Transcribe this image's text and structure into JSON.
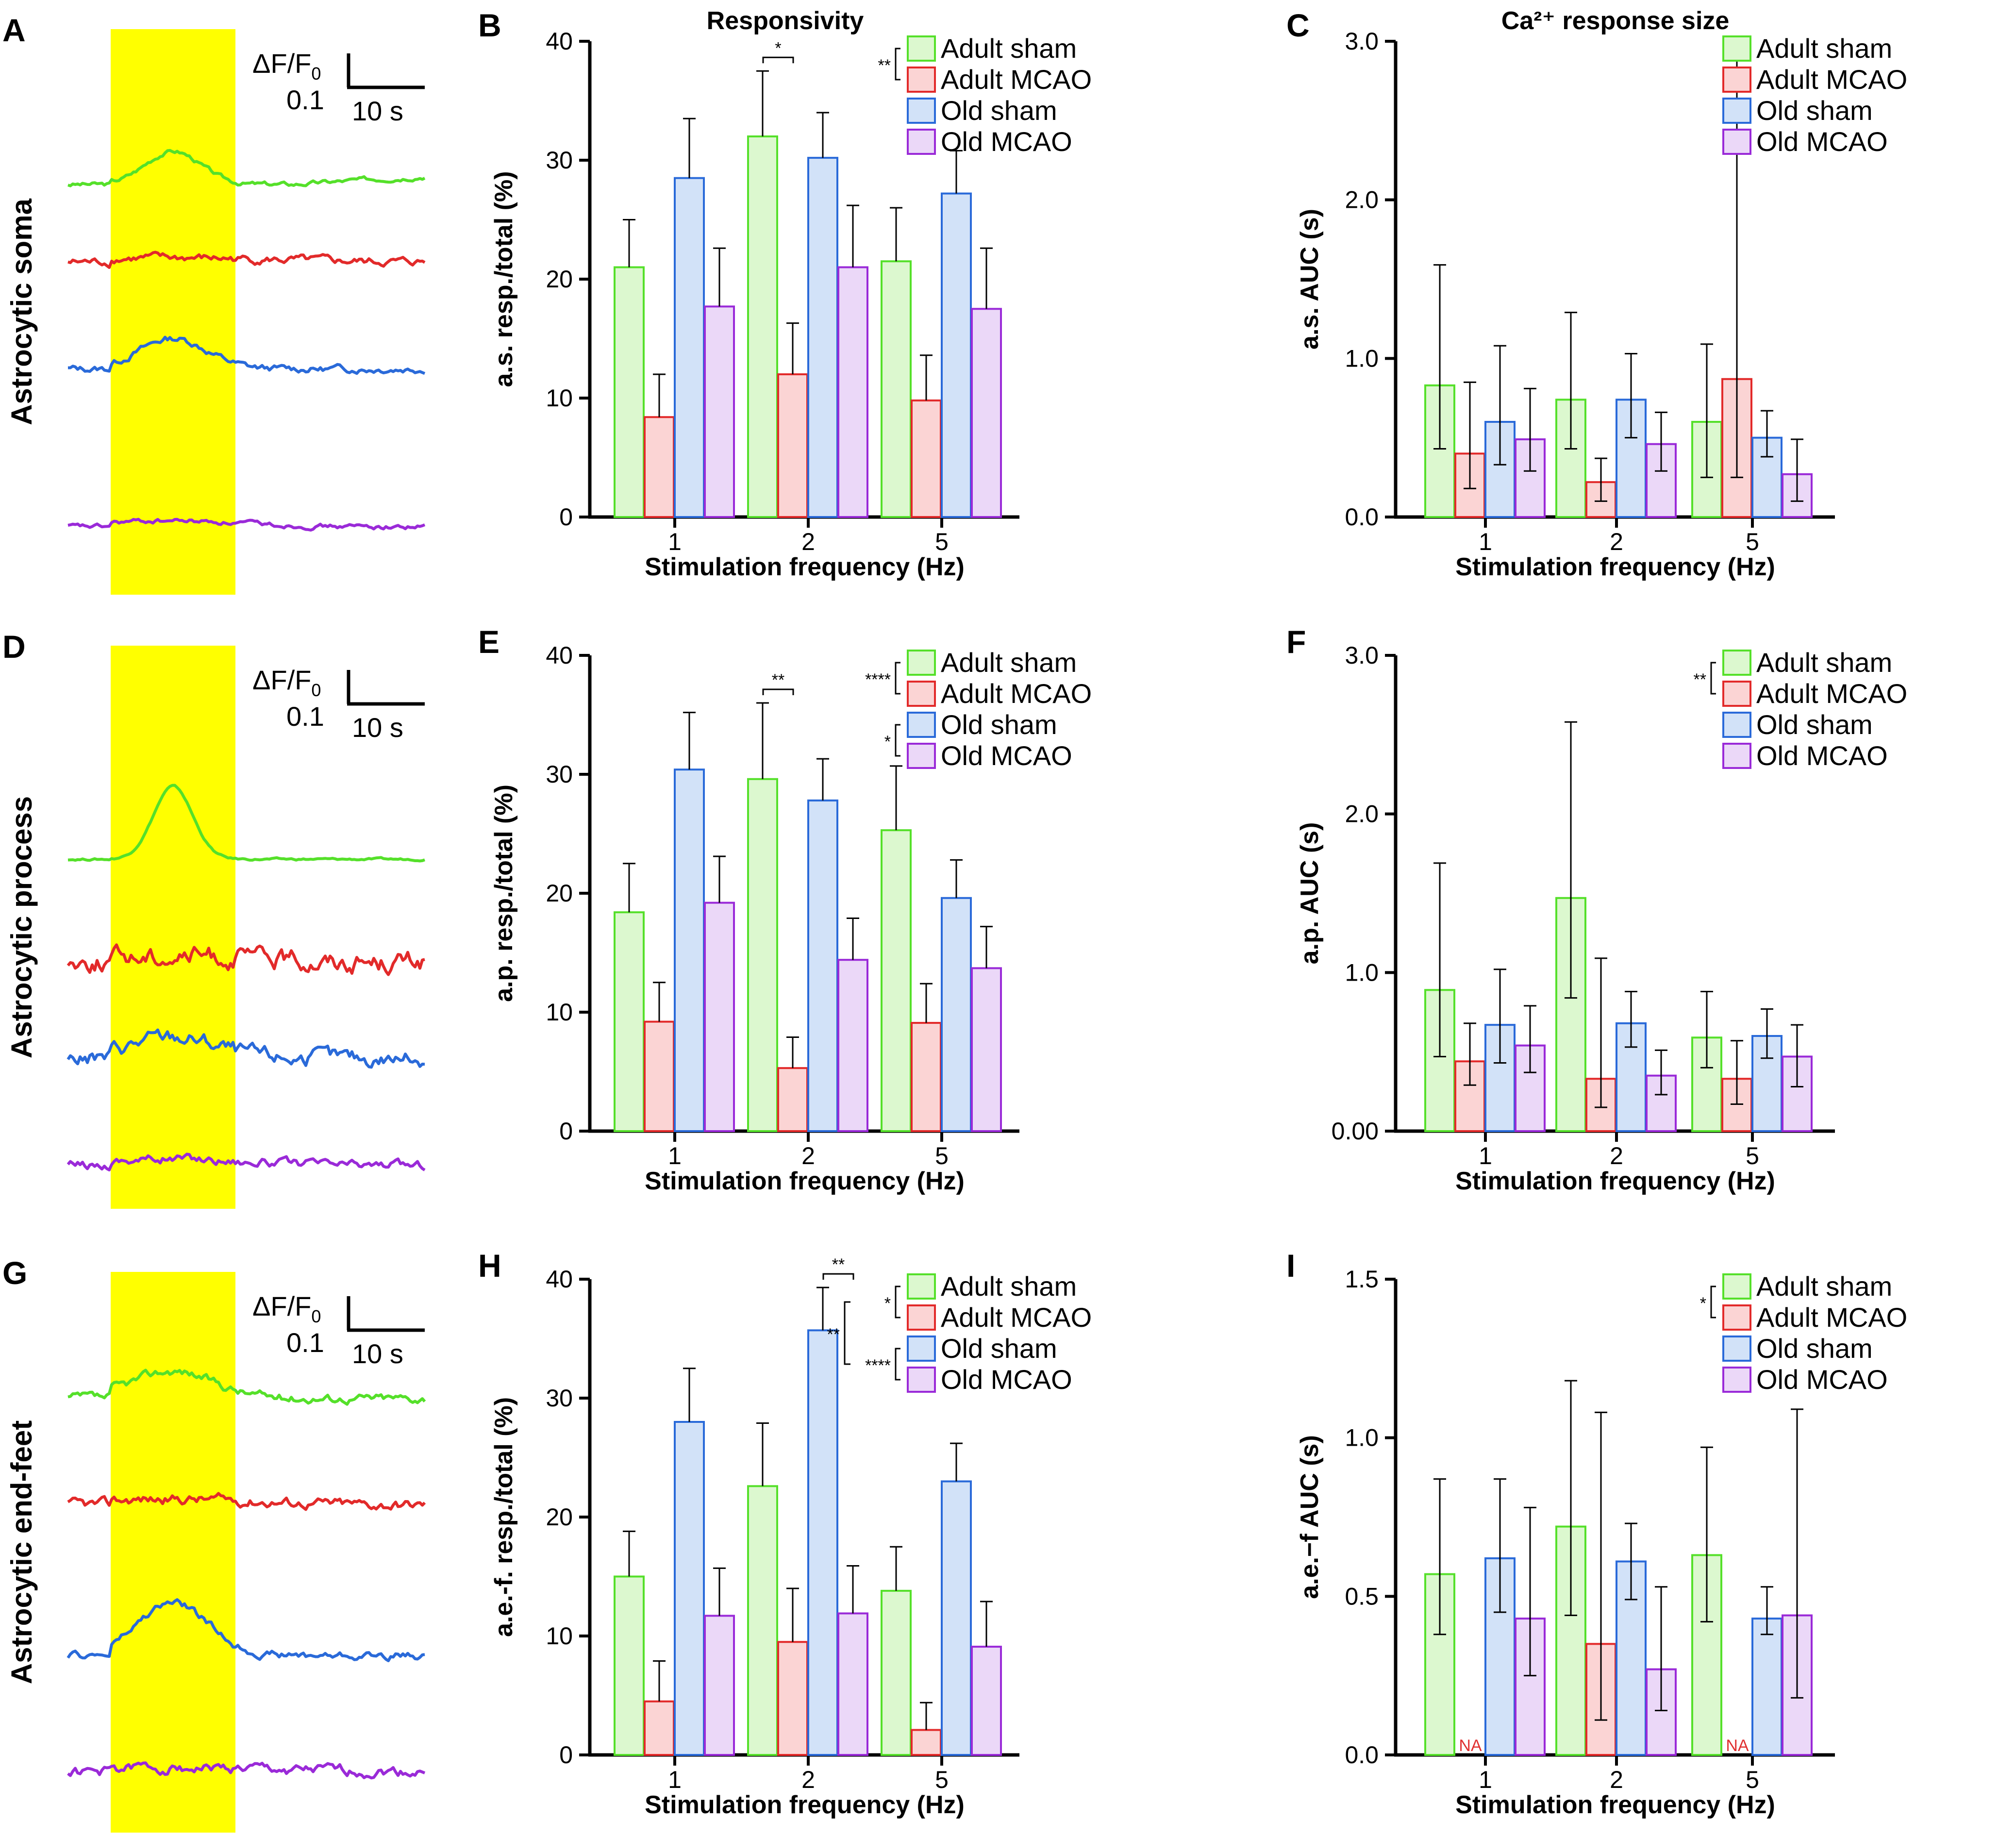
{
  "colors": {
    "Adult sham": {
      "stroke": "#55e02a",
      "fill": "#dcf8cf"
    },
    "Adult MCAO": {
      "stroke": "#e22a2a",
      "fill": "#fbd4d4"
    },
    "Old sham": {
      "stroke": "#2a6ad9",
      "fill": "#d2e2f8"
    },
    "Old MCAO": {
      "stroke": "#9a2ad8",
      "fill": "#ebd8f8"
    },
    "stim": "#ffff00"
  },
  "trace_panels": [
    {
      "letter": "A",
      "row_label": "Astrocytic soma",
      "scale_y": "0.1",
      "scale_x": "10 s",
      "scale_y_label": "ΔF/F0"
    },
    {
      "letter": "D",
      "row_label": "Astrocytic process",
      "scale_y": "0.1",
      "scale_x": "10 s",
      "scale_y_label": "ΔF/F0"
    },
    {
      "letter": "G",
      "row_label": "Astrocytic end-feet",
      "scale_y": "0.1",
      "scale_x": "10 s",
      "scale_y_label": "ΔF/F0"
    }
  ],
  "column_titles": {
    "responsivity": "Responsivity",
    "response_size": "Ca²⁺ response size"
  },
  "chart_data": [
    {
      "letter": "B",
      "type": "bar",
      "title": "Responsivity",
      "xlabel": "Stimulation frequency (Hz)",
      "ylabel": "a.s. resp./total (%)",
      "categories": [
        "1",
        "2",
        "5"
      ],
      "ylim": [
        0,
        40
      ],
      "yticks": [
        "0",
        "10",
        "20",
        "30",
        "40"
      ],
      "series": [
        {
          "name": "Adult sham",
          "values": [
            21,
            32,
            21.5
          ],
          "errors": [
            25,
            37.5,
            26
          ]
        },
        {
          "name": "Adult MCAO",
          "values": [
            8.4,
            12,
            9.8
          ],
          "errors": [
            12,
            16.3,
            13.6
          ]
        },
        {
          "name": "Old sham",
          "values": [
            28.5,
            30.2,
            27.2
          ],
          "errors": [
            33.5,
            34,
            30.8
          ]
        },
        {
          "name": "Old MCAO",
          "values": [
            17.7,
            21,
            17.5
          ],
          "errors": [
            22.6,
            26.2,
            22.6
          ]
        }
      ],
      "legend_sig": [
        {
          "text": "**",
          "pair": [
            "Adult sham",
            "Adult MCAO"
          ]
        }
      ],
      "bar_sig": [
        {
          "text": "*",
          "category": "2",
          "pair": [
            "Adult sham",
            "Adult MCAO"
          ]
        }
      ]
    },
    {
      "letter": "C",
      "type": "bar",
      "title": "Ca²⁺ response size",
      "xlabel": "Stimulation frequency (Hz)",
      "ylabel": "a.s. AUC (s)",
      "categories": [
        "1",
        "2",
        "5"
      ],
      "ylim": [
        0,
        3
      ],
      "yticks": [
        "0.0",
        "1.0",
        "2.0",
        "3.0"
      ],
      "series": [
        {
          "name": "Adult sham",
          "values": [
            0.83,
            0.74,
            0.6
          ],
          "errors": [
            [
              0.43,
              1.59
            ],
            [
              0.43,
              1.29
            ],
            [
              0.25,
              1.09
            ]
          ]
        },
        {
          "name": "Adult MCAO",
          "values": [
            0.4,
            0.22,
            0.87
          ],
          "errors": [
            [
              0.18,
              0.85
            ],
            [
              0.1,
              0.37
            ],
            [
              0.25,
              2.97
            ]
          ]
        },
        {
          "name": "Old sham",
          "values": [
            0.6,
            0.74,
            0.5
          ],
          "errors": [
            [
              0.33,
              1.08
            ],
            [
              0.5,
              1.03
            ],
            [
              0.38,
              0.67
            ]
          ]
        },
        {
          "name": "Old MCAO",
          "values": [
            0.49,
            0.46,
            0.27
          ],
          "errors": [
            [
              0.29,
              0.81
            ],
            [
              0.29,
              0.66
            ],
            [
              0.1,
              0.49
            ]
          ]
        }
      ],
      "legend_sig": [],
      "bar_sig": []
    },
    {
      "letter": "E",
      "type": "bar",
      "xlabel": "Stimulation frequency (Hz)",
      "ylabel": "a.p. resp./total (%)",
      "categories": [
        "1",
        "2",
        "5"
      ],
      "ylim": [
        0,
        40
      ],
      "yticks": [
        "0",
        "10",
        "20",
        "30",
        "40"
      ],
      "series": [
        {
          "name": "Adult sham",
          "values": [
            18.4,
            29.6,
            25.3
          ],
          "errors": [
            22.5,
            36,
            30.7
          ]
        },
        {
          "name": "Adult MCAO",
          "values": [
            9.2,
            5.3,
            9.1
          ],
          "errors": [
            12.5,
            7.9,
            12.4
          ]
        },
        {
          "name": "Old sham",
          "values": [
            30.4,
            27.8,
            19.6
          ],
          "errors": [
            35.2,
            31.3,
            22.8
          ]
        },
        {
          "name": "Old MCAO",
          "values": [
            19.2,
            14.4,
            13.7
          ],
          "errors": [
            23.1,
            17.9,
            17.2
          ]
        }
      ],
      "legend_sig": [
        {
          "text": "****",
          "pair": [
            "Adult sham",
            "Adult MCAO"
          ]
        },
        {
          "text": "*",
          "pair": [
            "Old sham",
            "Old MCAO"
          ]
        }
      ],
      "bar_sig": [
        {
          "text": "**",
          "category": "2",
          "pair": [
            "Adult sham",
            "Adult MCAO"
          ]
        }
      ]
    },
    {
      "letter": "F",
      "type": "bar",
      "xlabel": "Stimulation frequency (Hz)",
      "ylabel": "a.p. AUC (s)",
      "categories": [
        "1",
        "2",
        "5"
      ],
      "ylim": [
        0,
        3
      ],
      "yticks": [
        "0.00",
        "1.0",
        "2.0",
        "3.0"
      ],
      "series": [
        {
          "name": "Adult sham",
          "values": [
            0.89,
            1.47,
            0.59
          ],
          "errors": [
            [
              0.47,
              1.69
            ],
            [
              0.84,
              2.58
            ],
            [
              0.4,
              0.88
            ]
          ]
        },
        {
          "name": "Adult MCAO",
          "values": [
            0.44,
            0.33,
            0.33
          ],
          "errors": [
            [
              0.29,
              0.68
            ],
            [
              0.15,
              1.09
            ],
            [
              0.17,
              0.57
            ]
          ]
        },
        {
          "name": "Old sham",
          "values": [
            0.67,
            0.68,
            0.6
          ],
          "errors": [
            [
              0.43,
              1.02
            ],
            [
              0.53,
              0.88
            ],
            [
              0.46,
              0.77
            ]
          ]
        },
        {
          "name": "Old MCAO",
          "values": [
            0.54,
            0.35,
            0.47
          ],
          "errors": [
            [
              0.37,
              0.79
            ],
            [
              0.23,
              0.51
            ],
            [
              0.28,
              0.67
            ]
          ]
        }
      ],
      "legend_sig": [
        {
          "text": "**",
          "pair": [
            "Adult sham",
            "Adult MCAO"
          ]
        }
      ],
      "bar_sig": []
    },
    {
      "letter": "H",
      "type": "bar",
      "xlabel": "Stimulation frequency (Hz)",
      "ylabel": "a.e.-f. resp./total (%)",
      "categories": [
        "1",
        "2",
        "5"
      ],
      "ylim": [
        0,
        40
      ],
      "yticks": [
        "0",
        "10",
        "20",
        "30",
        "40"
      ],
      "series": [
        {
          "name": "Adult sham",
          "values": [
            15,
            22.6,
            13.8
          ],
          "errors": [
            18.8,
            27.9,
            17.5
          ]
        },
        {
          "name": "Adult MCAO",
          "values": [
            4.5,
            9.5,
            2.1
          ],
          "errors": [
            7.9,
            14,
            4.4
          ]
        },
        {
          "name": "Old sham",
          "values": [
            28,
            35.7,
            23
          ],
          "errors": [
            32.5,
            39.3,
            26.2
          ]
        },
        {
          "name": "Old MCAO",
          "values": [
            11.7,
            11.9,
            9.1
          ],
          "errors": [
            15.7,
            15.9,
            12.9
          ]
        }
      ],
      "legend_sig": [
        {
          "text": "*",
          "pair": [
            "Adult sham",
            "Adult MCAO"
          ]
        },
        {
          "text": "****",
          "pair": [
            "Old sham",
            "Old MCAO"
          ]
        }
      ],
      "legend_sig_outer": {
        "text": "**"
      },
      "bar_sig": [
        {
          "text": "**",
          "category": "2",
          "pair": [
            "Old sham",
            "Old MCAO"
          ]
        }
      ]
    },
    {
      "letter": "I",
      "type": "bar",
      "xlabel": "Stimulation frequency (Hz)",
      "ylabel": "a.e.−f AUC (s)",
      "categories": [
        "1",
        "2",
        "5"
      ],
      "ylim": [
        0,
        1.5
      ],
      "yticks": [
        "0.0",
        "0.5",
        "1.0",
        "1.5"
      ],
      "series": [
        {
          "name": "Adult sham",
          "values": [
            0.57,
            0.72,
            0.63
          ],
          "errors": [
            [
              0.38,
              0.87
            ],
            [
              0.44,
              1.18
            ],
            [
              0.42,
              0.97
            ]
          ]
        },
        {
          "name": "Adult MCAO",
          "values": [
            null,
            0.35,
            null
          ],
          "errors": [
            null,
            [
              0.11,
              1.08
            ],
            null
          ],
          "na_label": "NA"
        },
        {
          "name": "Old sham",
          "values": [
            0.62,
            0.61,
            0.43
          ],
          "errors": [
            [
              0.45,
              0.87
            ],
            [
              0.49,
              0.73
            ],
            [
              0.38,
              0.53
            ]
          ]
        },
        {
          "name": "Old MCAO",
          "values": [
            0.43,
            0.27,
            0.44
          ],
          "errors": [
            [
              0.25,
              0.78
            ],
            [
              0.14,
              0.53
            ],
            [
              0.18,
              1.09
            ]
          ]
        }
      ],
      "legend_sig": [
        {
          "text": "*",
          "pair": [
            "Adult sham",
            "Adult MCAO"
          ]
        }
      ],
      "bar_sig": []
    }
  ]
}
